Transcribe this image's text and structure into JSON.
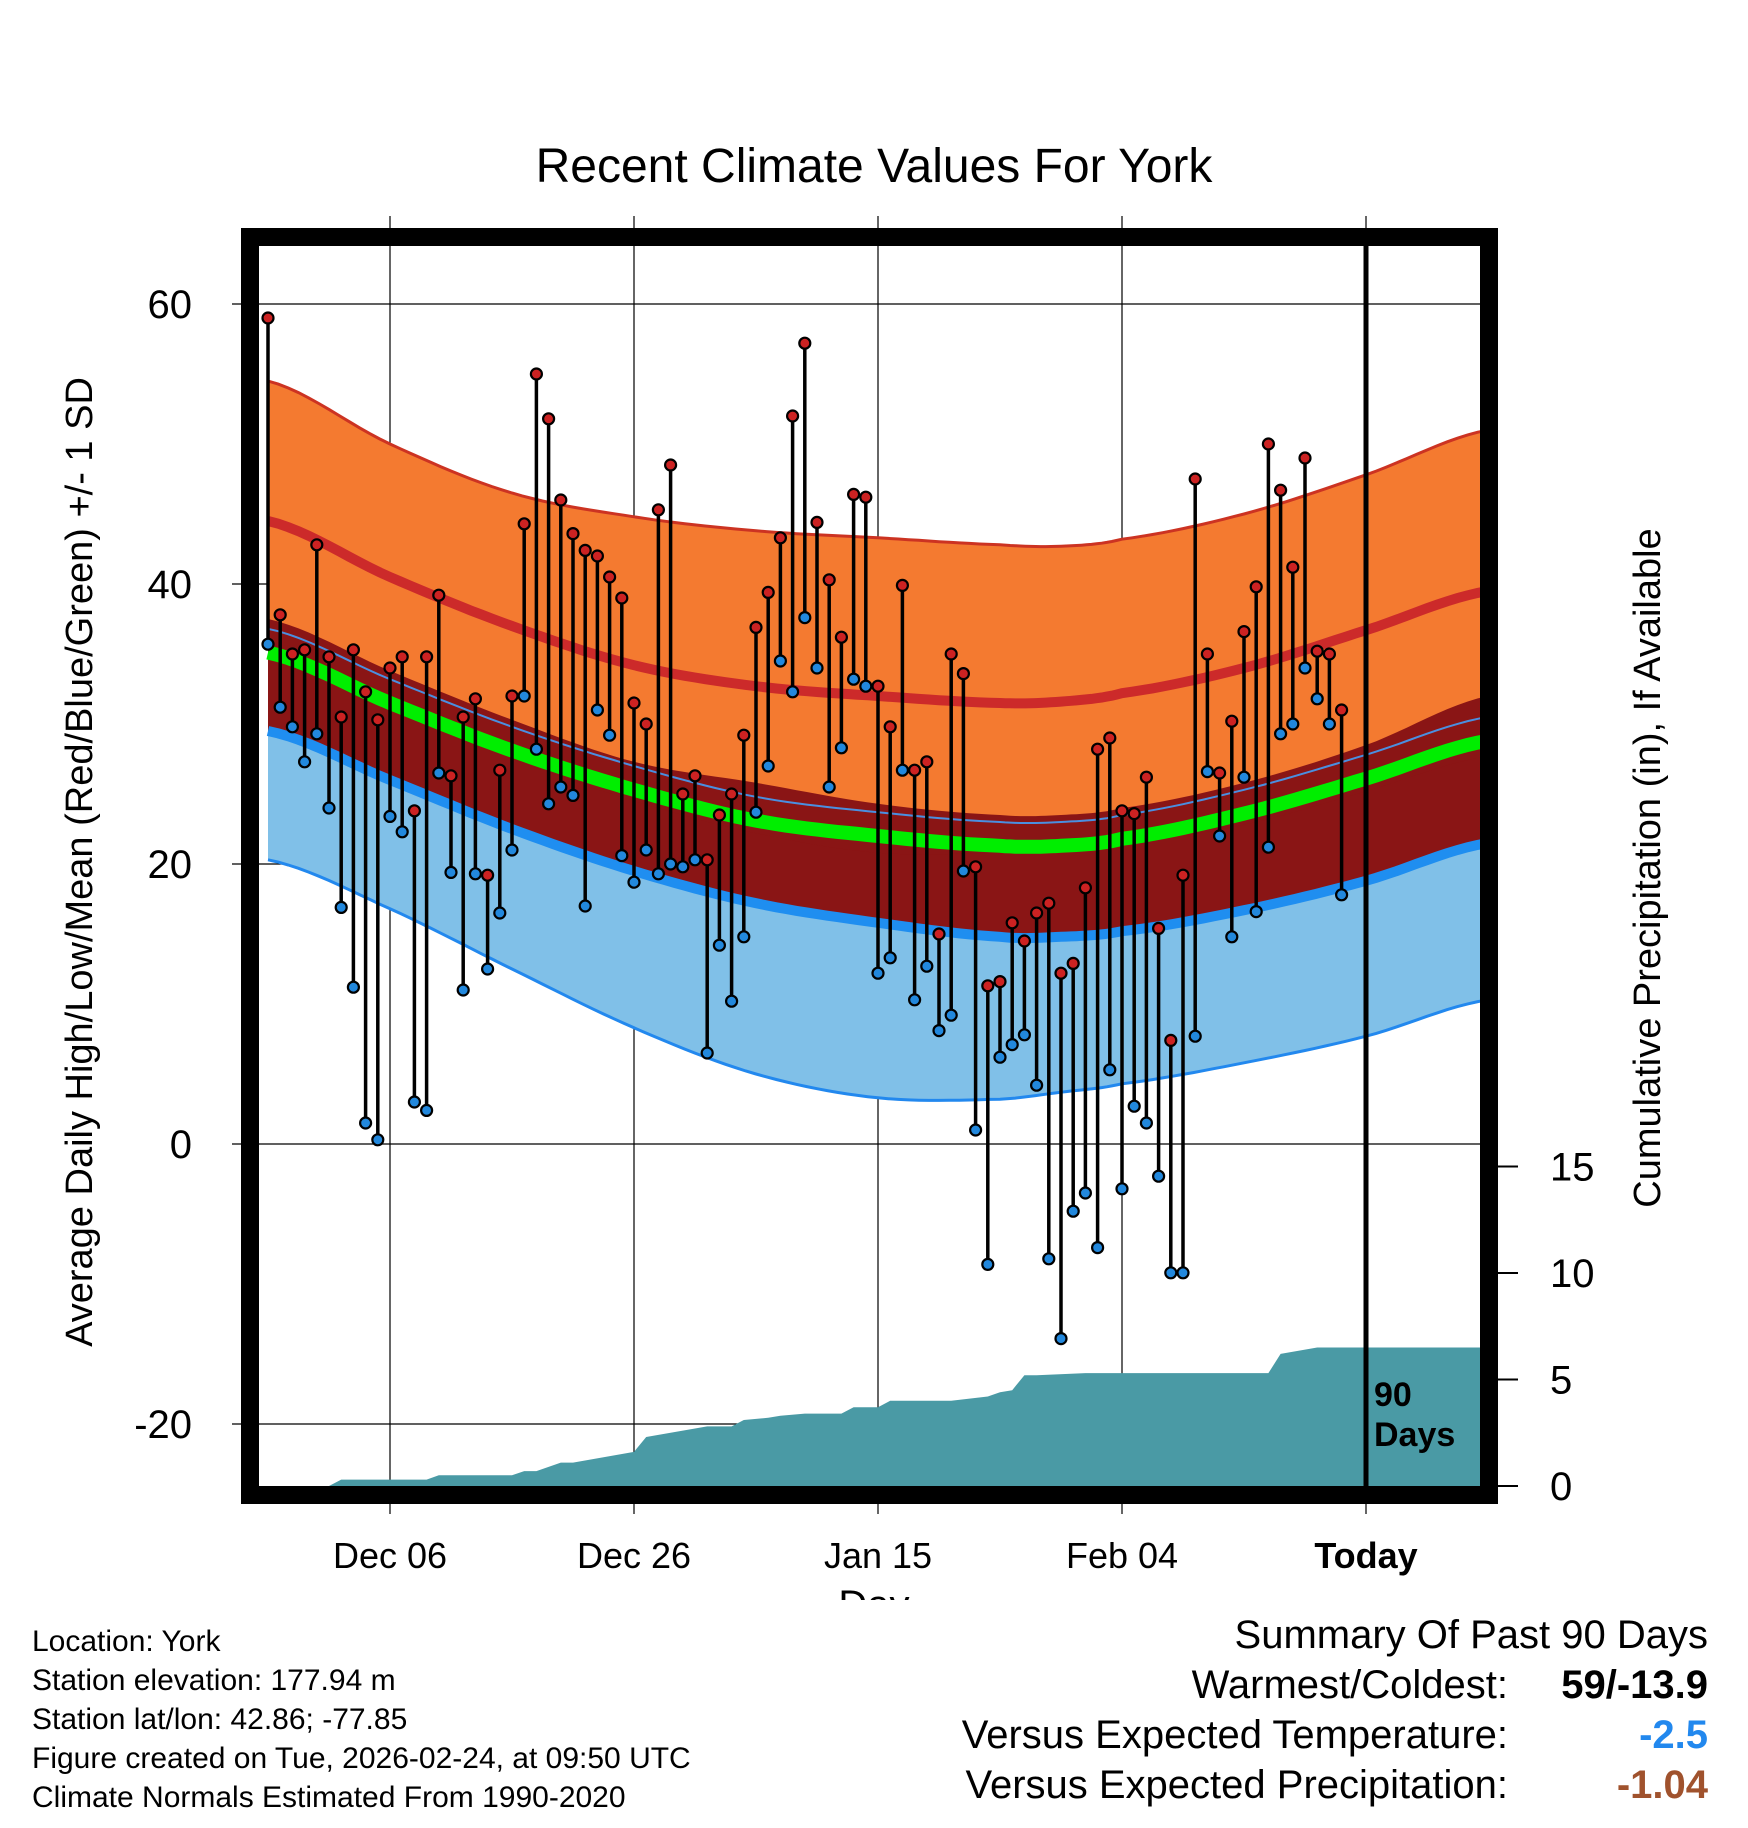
{
  "chart_data": {
    "type": "line",
    "title": "Recent Climate Values For York",
    "xlabel": "Day",
    "ylabel": "Average Daily High/Low/Mean (Red/Blue/Green) +/- 1 SD",
    "y2label": "Cumulative Precipitation (in), If Available",
    "ylim": [
      -24,
      65
    ],
    "y_ticks": [
      "60",
      "40",
      "20",
      "0",
      "-20"
    ],
    "y2lim": [
      0,
      38
    ],
    "y2_ticks": [
      "15",
      "10",
      "5",
      "0"
    ],
    "xlim": [
      0,
      100
    ],
    "x_ticks": [
      {
        "label": "Dec 06",
        "day": 10
      },
      {
        "label": "Dec 26",
        "day": 30
      },
      {
        "label": "Jan 15",
        "day": 50
      },
      {
        "label": "Feb 04",
        "day": 70
      },
      {
        "label": "Today",
        "day": 90
      }
    ],
    "today_marker": {
      "day": 90,
      "label1": "90",
      "label2": "Days"
    },
    "normals": {
      "days": [
        0,
        10,
        20,
        30,
        40,
        50,
        60,
        65,
        70,
        80,
        90,
        100
      ],
      "high_mean": [
        44.5,
        40.5,
        37,
        34.2,
        32.7,
        32.0,
        31.5,
        31.6,
        32.2,
        34.0,
        36.7,
        39.5
      ],
      "high_plus_sd": [
        54.5,
        50.0,
        46.5,
        44.8,
        43.8,
        43.3,
        42.8,
        42.7,
        43.2,
        45.0,
        47.8,
        51.0
      ],
      "low_mean": [
        29.5,
        26.0,
        22.5,
        19.5,
        17.2,
        15.8,
        14.8,
        14.8,
        15.2,
        16.7,
        18.8,
        21.5
      ],
      "low_minus_sd": [
        20.3,
        16.8,
        12.5,
        8.3,
        5.0,
        3.3,
        3.2,
        3.7,
        4.3,
        5.8,
        7.7,
        10.3
      ],
      "mean": [
        36.8,
        33.2,
        29.8,
        27.0,
        24.8,
        23.7,
        23.0,
        23.0,
        23.5,
        25.3,
        27.8,
        30.5
      ],
      "mean_sd_upper": [
        37.5,
        33.8,
        30.3,
        27.3,
        25.8,
        24.3,
        23.5,
        23.5,
        24.0,
        25.8,
        28.5,
        32.0
      ],
      "mean_sd_lower": [
        34.7,
        31.0,
        27.5,
        24.5,
        22.2,
        20.8,
        20.8,
        21.0,
        21.5,
        22.8,
        25.2,
        27.7
      ]
    },
    "series": [
      {
        "name": "Daily High",
        "color": "#cc2222",
        "values": [
          59,
          37.8,
          35,
          35.3,
          42.8,
          34.8,
          30.5,
          35.3,
          32.3,
          30.3,
          34,
          34.8,
          23.8,
          34.8,
          39.2,
          26.3,
          30.5,
          31.8,
          19.2,
          26.7,
          32,
          44.3,
          55,
          51.8,
          46,
          43.6,
          42.4,
          42,
          40.5,
          39,
          31.5,
          30,
          45.3,
          48.5,
          25,
          26.3,
          20.3,
          23.5,
          25,
          29.2,
          36.9,
          39.4,
          43.3,
          52,
          57.2,
          44.4,
          40.3,
          36.2,
          46.4,
          46.2,
          32.7,
          29.8,
          39.9,
          26.7,
          27.3,
          15,
          35,
          33.6,
          19.8,
          11.3,
          11.6,
          15.8,
          14.5,
          16.5,
          17.2,
          12.2,
          12.9,
          18.3,
          28.2,
          29,
          23.8,
          23.6,
          26.2,
          15.4,
          7.4,
          19.2,
          47.5,
          35,
          26.5,
          30.2,
          36.6,
          39.8,
          50,
          46.7,
          41.2,
          49,
          35.2,
          35,
          31,
          null
        ]
      },
      {
        "name": "Daily Low",
        "color": "#2288dd",
        "values": [
          35.7,
          31.2,
          29.8,
          27.3,
          29.3,
          24,
          16.9,
          11.2,
          1.5,
          0.3,
          23.4,
          22.3,
          3,
          2.4,
          26.5,
          19.4,
          11,
          19.3,
          12.5,
          16.5,
          21,
          32,
          28.2,
          24.3,
          25.5,
          24.9,
          17,
          31,
          29.2,
          20.6,
          18.7,
          21,
          19.3,
          20,
          19.8,
          20.3,
          6.5,
          14.2,
          10.2,
          14.8,
          23.7,
          27,
          34.5,
          32.3,
          37.6,
          34,
          25.5,
          28.3,
          33.2,
          32.7,
          12.2,
          13.3,
          26.7,
          10.3,
          12.7,
          8.1,
          9.2,
          19.5,
          1,
          -8.6,
          6.2,
          7.1,
          7.8,
          4.2,
          -8.2,
          -13.9,
          -4.8,
          -3.5,
          -7.4,
          5.3,
          -3.2,
          2.7,
          1.5,
          -2.3,
          -9.2,
          -9.2,
          7.7,
          26.6,
          22,
          14.8,
          26.2,
          16.6,
          21.2,
          29.3,
          30,
          34,
          31.8,
          30,
          17.8,
          null
        ]
      }
    ],
    "precipitation": {
      "name": "Cumulative Precipitation",
      "color": "#4a9aa5",
      "days": [
        0,
        5,
        6,
        13,
        14,
        20,
        21,
        22,
        24,
        25,
        30,
        31,
        33,
        34,
        36,
        38,
        39,
        41,
        42,
        44,
        47,
        48,
        50,
        51,
        56,
        59,
        60,
        61,
        62,
        63,
        67,
        82,
        83,
        84,
        86,
        100
      ],
      "values": [
        0,
        0,
        0.3,
        0.3,
        0.5,
        0.5,
        0.7,
        0.7,
        1.1,
        1.1,
        1.6,
        2.3,
        2.5,
        2.6,
        2.8,
        2.8,
        3.1,
        3.2,
        3.3,
        3.4,
        3.4,
        3.7,
        3.7,
        4,
        4,
        4.2,
        4.4,
        4.5,
        5.2,
        5.2,
        5.3,
        5.3,
        6.2,
        6.3,
        6.5,
        6.5
      ]
    }
  },
  "meta": {
    "location": "Location: York",
    "elevation": "Station elevation: 177.94 m",
    "latlon": "Station lat/lon: 42.86; -77.85",
    "created": "Figure created on Tue, 2026-02-24, at 09:50 UTC",
    "normals": "Climate Normals Estimated From 1990-2020"
  },
  "summary": {
    "title": "Summary Of Past 90 Days",
    "warm_cold_label": "Warmest/Coldest:",
    "warm_cold_value": "59/-13.9",
    "temp_label": "Versus Expected Temperature:",
    "temp_value": "-2.5",
    "temp_color": "#2288ee",
    "precip_label": "Versus Expected Precipitation:",
    "precip_value": "-1.04",
    "precip_color": "#a0522d"
  }
}
